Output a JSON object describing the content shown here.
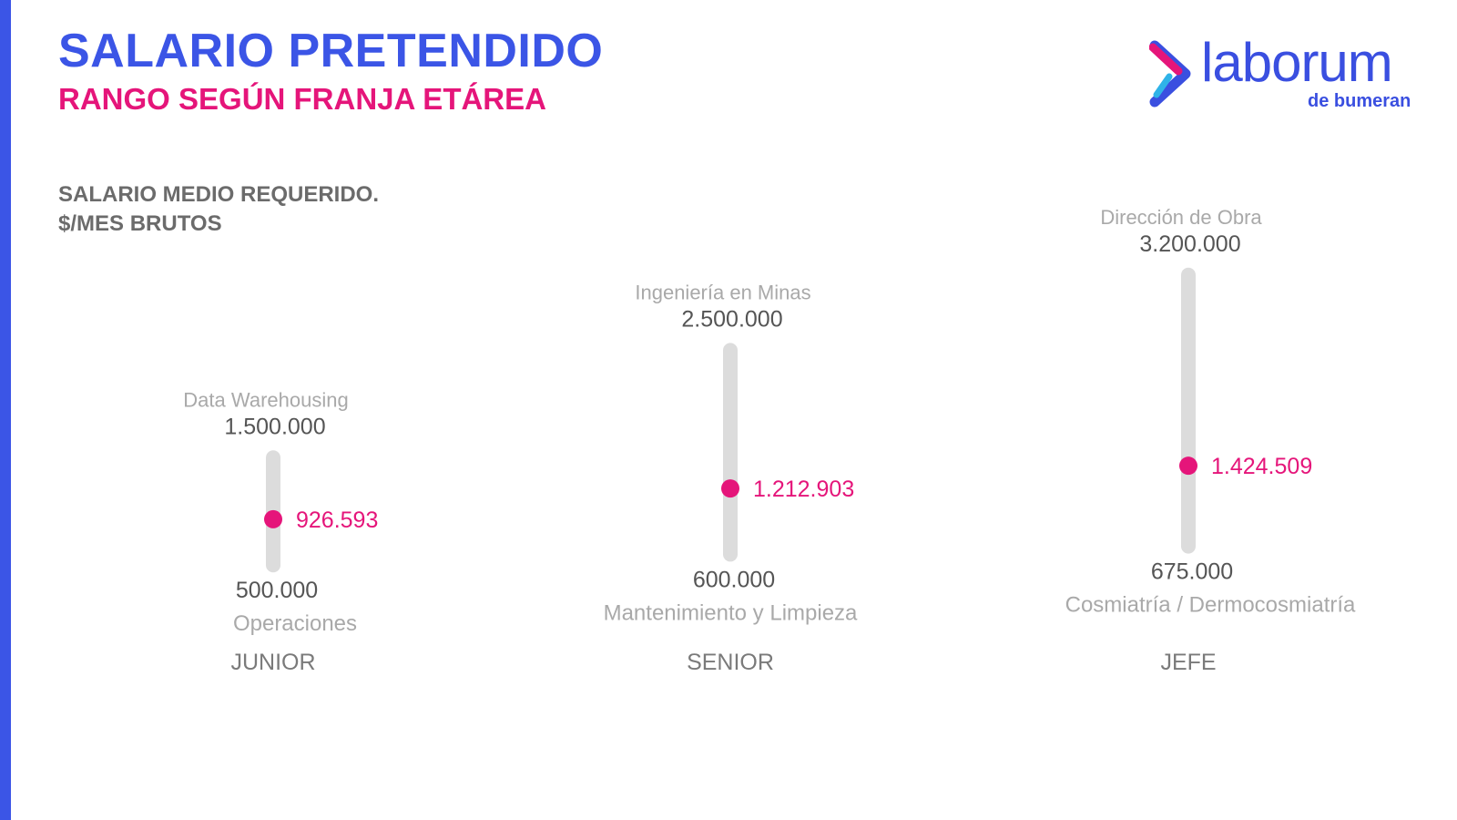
{
  "header": {
    "title": "SALARIO PRETENDIDO",
    "subtitle": "RANGO SEGÚN FRANJA ETÁREA",
    "metric_line1": "SALARIO MEDIO REQUERIDO.",
    "metric_line2": "$/MES BRUTOS"
  },
  "logo": {
    "word": "laborum",
    "sub": "de bumeran"
  },
  "colors": {
    "title": "#3b55e6",
    "subtitle": "#e5157a",
    "accent": "#e5157a",
    "track": "#dcdcdc",
    "label_muted": "#a9a9a9",
    "value_text": "#555555"
  },
  "chart_data": {
    "type": "range",
    "ylim": [
      400000,
      3300000
    ],
    "series": [
      {
        "category": "JUNIOR",
        "max": 1500000,
        "max_label": "1.500.000",
        "max_area": "Data Warehousing",
        "min": 500000,
        "min_label": "500.000",
        "min_area": "Operaciones",
        "avg": 926593,
        "avg_label": "926.593"
      },
      {
        "category": "SENIOR",
        "max": 2500000,
        "max_label": "2.500.000",
        "max_area": "Ingeniería en Minas",
        "min": 600000,
        "min_label": "600.000",
        "min_area": "Mantenimiento y Limpieza",
        "avg": 1212903,
        "avg_label": "1.212.903"
      },
      {
        "category": "JEFE",
        "max": 3200000,
        "max_label": "3.200.000",
        "max_area": "Dirección de Obra",
        "min": 675000,
        "min_label": "675.000",
        "min_area": "Cosmiatría / Dermocosmiatría",
        "avg": 1424509,
        "avg_label": "1.424.509"
      }
    ]
  }
}
